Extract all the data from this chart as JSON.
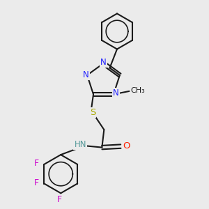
{
  "bg_color": "#ebebeb",
  "bond_color": "#1a1a1a",
  "n_color": "#2020ff",
  "o_color": "#ff2000",
  "s_color": "#aaaa00",
  "f_color": "#cc00cc",
  "h_color": "#559999",
  "line_width": 1.5,
  "dpi": 100,
  "figsize": [
    3.0,
    3.0
  ],
  "xlim": [
    0,
    10
  ],
  "ylim": [
    0,
    10
  ]
}
